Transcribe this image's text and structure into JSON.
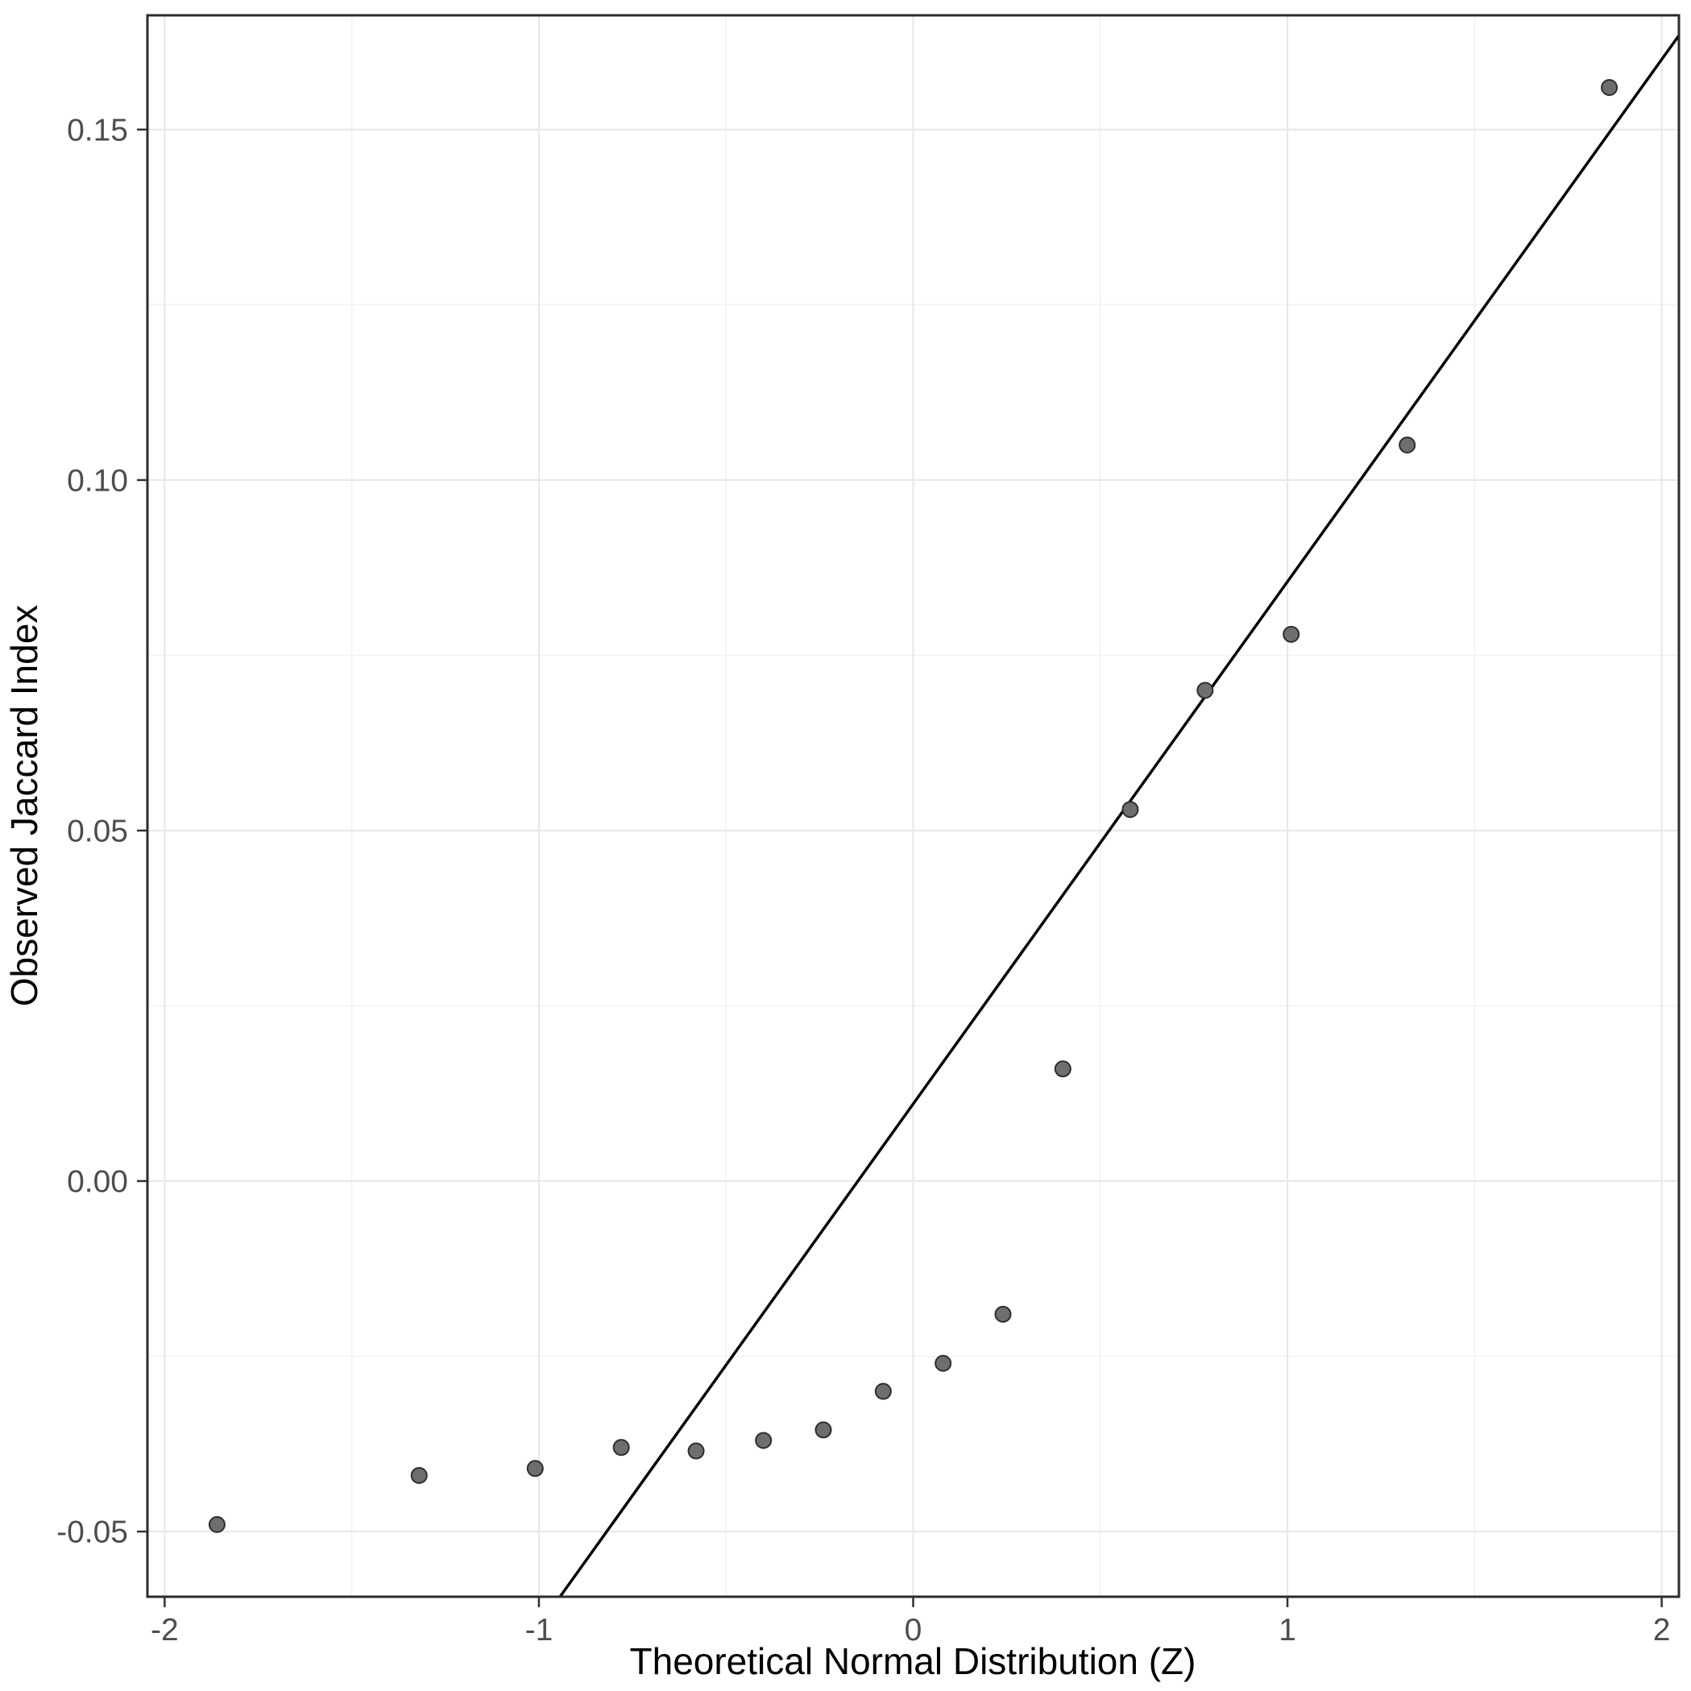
{
  "page": {
    "background": "#ffffff"
  },
  "chart_data": {
    "type": "scatter",
    "subtype": "qq-plot",
    "title": "",
    "xlabel": "Theoretical Normal Distribution (Z)",
    "ylabel": "Observed Jaccard Index",
    "xlim": [
      -2.046,
      2.046
    ],
    "ylim": [
      -0.0593,
      0.1663
    ],
    "grid": "on",
    "legend": "none",
    "x_ticks": {
      "values": [
        -2,
        -1,
        0,
        1,
        2
      ],
      "labels": [
        "-2",
        "-1",
        "0",
        "1",
        "2"
      ]
    },
    "y_ticks": {
      "values": [
        -0.05,
        0.0,
        0.05,
        0.1,
        0.15
      ],
      "labels": [
        "-0.05",
        "0.00",
        "0.05",
        "0.10",
        "0.15"
      ]
    },
    "x_minor_ticks": [
      -1.5,
      -0.5,
      0.5,
      1.5
    ],
    "y_minor_ticks": [
      -0.025,
      0.025,
      0.075,
      0.125
    ],
    "points": [
      [
        -1.86,
        -0.049
      ],
      [
        -1.32,
        -0.042
      ],
      [
        -1.01,
        -0.041
      ],
      [
        -0.78,
        -0.038
      ],
      [
        -0.58,
        -0.0385
      ],
      [
        -0.4,
        -0.037
      ],
      [
        -0.24,
        -0.0355
      ],
      [
        -0.08,
        -0.03
      ],
      [
        0.08,
        -0.026
      ],
      [
        0.24,
        -0.019
      ],
      [
        0.4,
        0.016
      ],
      [
        0.58,
        0.053
      ],
      [
        0.78,
        0.07
      ],
      [
        1.01,
        0.078
      ],
      [
        1.32,
        0.105
      ],
      [
        1.86,
        0.156
      ]
    ],
    "reference_line": {
      "type": "qqline",
      "slope": 0.0745,
      "intercept": 0.011,
      "color": "#000000"
    },
    "style": {
      "point_fill": "#6e6e6e",
      "point_stroke": "#2e2e2e",
      "point_radius": 9.5,
      "line_width": 3.5,
      "grid_major_color": "#e8e8e8",
      "grid_minor_color": "#f1f1f1",
      "panel_border_color": "#2b2b2b",
      "tick_color": "#333333",
      "tick_label_color": "#4d4d4d",
      "axis_title_color": "#000000",
      "background": "#ffffff"
    }
  }
}
